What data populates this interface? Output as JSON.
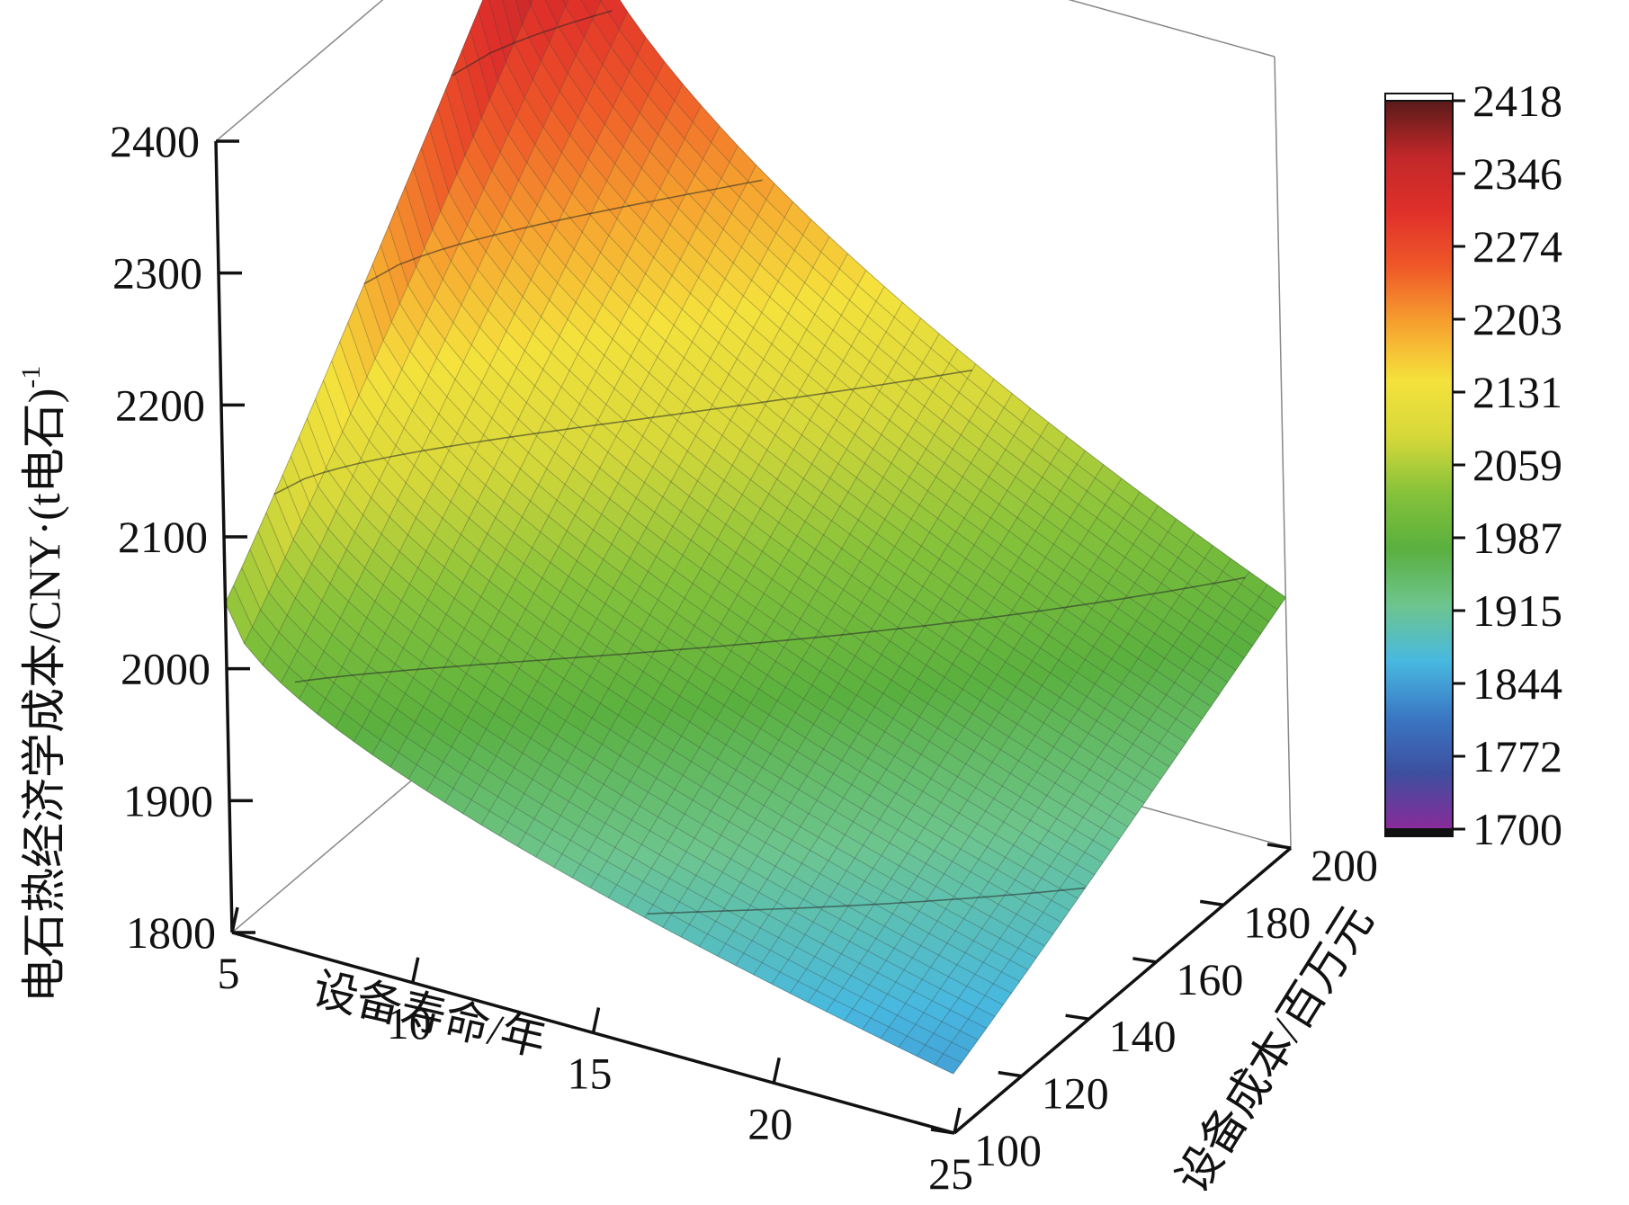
{
  "chart_data": {
    "type": "surface",
    "zlabel": "电石热经济学成本/CNY·(t电石)",
    "zlabel_superscript": "-1",
    "xlabel": "设备寿命/年",
    "ylabel": "设备成本/百万元",
    "x_ticks": [
      "5",
      "10",
      "15",
      "20",
      "25"
    ],
    "y_ticks": [
      "100",
      "120",
      "140",
      "160",
      "180",
      "200"
    ],
    "z_ticks": [
      "1800",
      "1900",
      "2000",
      "2100",
      "2200",
      "2300",
      "2400"
    ],
    "xlim": [
      5,
      25
    ],
    "ylim": [
      100,
      200
    ],
    "zlim": [
      1800,
      2400
    ],
    "colorbar_ticks": [
      "2418",
      "2346",
      "2274",
      "2203",
      "2131",
      "2059",
      "1987",
      "1915",
      "1844",
      "1772",
      "1700"
    ],
    "colorbar_range": [
      1700,
      2418
    ],
    "colormap": [
      "#8a2b9a",
      "#3d4f9f",
      "#3a78c4",
      "#48b9e0",
      "#6dc58e",
      "#5ab03e",
      "#86c23a",
      "#d6d83a",
      "#f5e23c",
      "#f6a32f",
      "#ef5a28",
      "#e0302a",
      "#c2282a",
      "#5a1a1a"
    ],
    "corner_values": [
      {
        "x": 5,
        "y": 100,
        "z": 2050
      },
      {
        "x": 5,
        "y": 200,
        "z": 2418
      },
      {
        "x": 25,
        "y": 100,
        "z": 1845
      },
      {
        "x": 25,
        "y": 200,
        "z": 1990
      }
    ]
  }
}
